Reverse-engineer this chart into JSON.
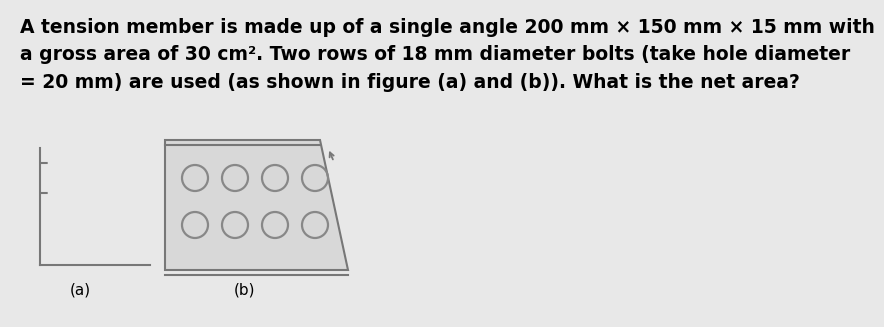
{
  "title_text": "A tension member is made up of a single angle 200 mm × 150 mm × 15 mm with\na gross area of 30 cm². Two rows of 18 mm diameter bolts (take hole diameter\n= 20 mm) are used (as shown in figure (a) and (b)). What is the net area?",
  "bg_color": "#e8e8e8",
  "fig_bg_color": "#e8e8e8",
  "label_a": "(a)",
  "label_b": "(b)",
  "text_color": "#000000",
  "gray": "#777777",
  "bolt_circle_color": "#888888",
  "num_bolt_cols": 4,
  "num_bolt_rows": 2,
  "title_fontsize": 13.5,
  "label_fontsize": 11,
  "trap_facecolor": "#d8d8d8"
}
